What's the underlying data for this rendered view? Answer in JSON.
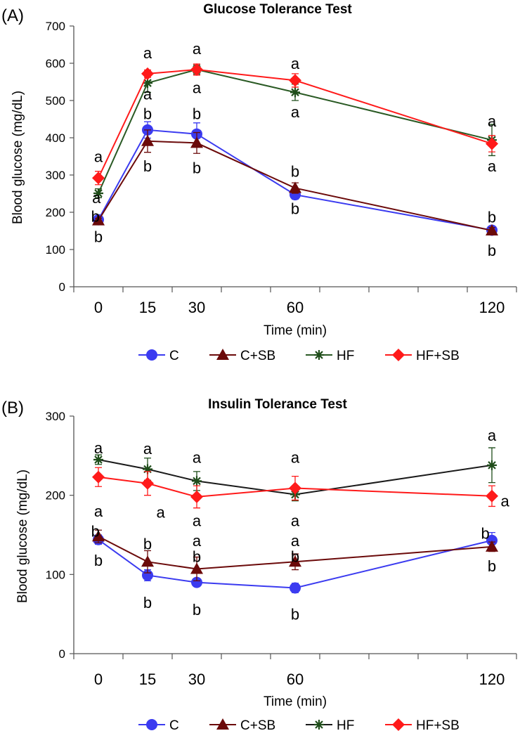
{
  "chart_data": [
    {
      "type": "line",
      "panel_label": "(A)",
      "title": "Glucose Tolerance Test",
      "xlabel": "Time (min)",
      "ylabel": "Blood glucose (mg/dL)",
      "ylim": [
        0,
        700
      ],
      "yticks": [
        "0",
        "100",
        "200",
        "300",
        "400",
        "500",
        "600",
        "700"
      ],
      "x": [
        0,
        15,
        30,
        60,
        120
      ],
      "xtick_labels": [
        "0",
        "15",
        "30",
        "60",
        "120"
      ],
      "series": [
        {
          "name": "C",
          "color": "#3b3bf0",
          "marker": "circle",
          "line": "#3b3bf0",
          "values": [
            180,
            421,
            410,
            247,
            152
          ],
          "errors": [
            8,
            22,
            30,
            12,
            10
          ]
        },
        {
          "name": "C+SB",
          "color": "#6b0a0a",
          "marker": "triangle",
          "line": "#6b0a0a",
          "values": [
            178,
            391,
            386,
            265,
            151
          ],
          "errors": [
            6,
            30,
            28,
            14,
            8
          ]
        },
        {
          "name": "HF",
          "color": "#1f4d1a",
          "marker": "star",
          "line": "#2a5a24",
          "values": [
            251,
            547,
            583,
            522,
            394
          ],
          "errors": [
            12,
            25,
            12,
            22,
            42
          ]
        },
        {
          "name": "HF+SB",
          "color": "#ff1a1a",
          "marker": "diamond",
          "line": "#ff1a1a",
          "values": [
            292,
            572,
            583,
            554,
            384
          ],
          "errors": [
            18,
            10,
            15,
            18,
            22
          ]
        }
      ],
      "annotations": [
        {
          "text": "a",
          "x": 0,
          "y": 350
        },
        {
          "text": "a",
          "x": -0.6,
          "y": 240
        },
        {
          "text": "b",
          "x": -0.9,
          "y": 190
        },
        {
          "text": "b",
          "x": 0,
          "y": 135
        },
        {
          "text": "a",
          "x": 15,
          "y": 628
        },
        {
          "text": "a",
          "x": 15,
          "y": 518
        },
        {
          "text": "b",
          "x": 15,
          "y": 465
        },
        {
          "text": "b",
          "x": 15,
          "y": 325
        },
        {
          "text": "a",
          "x": 30,
          "y": 640
        },
        {
          "text": "a",
          "x": 30,
          "y": 535
        },
        {
          "text": "b",
          "x": 30,
          "y": 465
        },
        {
          "text": "b",
          "x": 30,
          "y": 320
        },
        {
          "text": "a",
          "x": 60,
          "y": 600
        },
        {
          "text": "a",
          "x": 60,
          "y": 470
        },
        {
          "text": "b",
          "x": 60,
          "y": 310
        },
        {
          "text": "b",
          "x": 60,
          "y": 210
        },
        {
          "text": "a",
          "x": 120,
          "y": 445
        },
        {
          "text": "a",
          "x": 120,
          "y": 325
        },
        {
          "text": "b",
          "x": 120,
          "y": 188
        },
        {
          "text": "b",
          "x": 120,
          "y": 98
        }
      ],
      "legend": [
        "C",
        "C+SB",
        "HF",
        "HF+SB"
      ]
    },
    {
      "type": "line",
      "panel_label": "(B)",
      "title": "Insulin Tolerance Test",
      "xlabel": "Time (min)",
      "ylabel": "Blood glucose (mg/dL)",
      "ylim": [
        0,
        300
      ],
      "yticks": [
        "0",
        "100",
        "200",
        "300"
      ],
      "x": [
        0,
        15,
        30,
        60,
        120
      ],
      "xtick_labels": [
        "0",
        "15",
        "30",
        "60",
        "120"
      ],
      "series": [
        {
          "name": "C",
          "color": "#3b3bf0",
          "marker": "circle",
          "line": "#3b3bf0",
          "values": [
            144,
            99,
            90,
            83,
            143
          ],
          "errors": [
            6,
            7,
            5,
            6,
            10
          ]
        },
        {
          "name": "C+SB",
          "color": "#6b0a0a",
          "marker": "triangle",
          "line": "#6b0a0a",
          "values": [
            148,
            116,
            107,
            116,
            135
          ],
          "errors": [
            8,
            14,
            15,
            10,
            6
          ]
        },
        {
          "name": "HF",
          "color": "#1f4d1a",
          "marker": "star",
          "line": "#1a1a1a",
          "values": [
            245,
            233,
            218,
            201,
            238
          ],
          "errors": [
            6,
            14,
            12,
            8,
            22
          ]
        },
        {
          "name": "HF+SB",
          "color": "#ff1a1a",
          "marker": "diamond",
          "line": "#ff1a1a",
          "values": [
            223,
            215,
            198,
            209,
            199
          ],
          "errors": [
            12,
            15,
            14,
            15,
            13
          ]
        }
      ],
      "annotations": [
        {
          "text": "a",
          "x": 0,
          "y": 260
        },
        {
          "text": "a",
          "x": 0,
          "y": 180
        },
        {
          "text": "b",
          "x": -0.9,
          "y": 155
        },
        {
          "text": "b",
          "x": 0,
          "y": 118
        },
        {
          "text": "a",
          "x": 15,
          "y": 259
        },
        {
          "text": "a",
          "x": 19,
          "y": 179
        },
        {
          "text": "b",
          "x": 15,
          "y": 139
        },
        {
          "text": "b",
          "x": 15,
          "y": 65
        },
        {
          "text": "a",
          "x": 30,
          "y": 248
        },
        {
          "text": "a",
          "x": 30,
          "y": 168
        },
        {
          "text": "a",
          "x": 30,
          "y": 143
        },
        {
          "text": "b",
          "x": 30,
          "y": 123
        },
        {
          "text": "b",
          "x": 30,
          "y": 56
        },
        {
          "text": "a",
          "x": 60,
          "y": 248
        },
        {
          "text": "a",
          "x": 60,
          "y": 168
        },
        {
          "text": "a",
          "x": 60,
          "y": 143
        },
        {
          "text": "b",
          "x": 60,
          "y": 123
        },
        {
          "text": "b",
          "x": 60,
          "y": 50
        },
        {
          "text": "a",
          "x": 120,
          "y": 276
        },
        {
          "text": "a",
          "x": 124,
          "y": 193
        },
        {
          "text": "b",
          "x": 118,
          "y": 152
        },
        {
          "text": "b",
          "x": 120,
          "y": 111
        }
      ],
      "legend": [
        "C",
        "C+SB",
        "HF",
        "HF+SB"
      ]
    }
  ]
}
